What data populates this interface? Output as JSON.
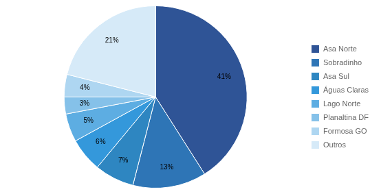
{
  "chart_data": {
    "type": "pie",
    "categories": [
      "Asa Norte",
      "Sobradinho",
      "Asa Sul",
      "Águas Claras",
      "Lago Norte",
      "Planaltina DF",
      "Formosa GO",
      "Outros"
    ],
    "values": [
      41,
      13,
      7,
      6,
      5,
      3,
      4,
      21
    ],
    "value_labels": [
      "41%",
      "13%",
      "7%",
      "6%",
      "5%",
      "3%",
      "4%",
      "21%"
    ],
    "colors": [
      "#2F5496",
      "#2E75B6",
      "#2E86C1",
      "#3498DB",
      "#5DADE2",
      "#85C1E9",
      "#AED6F1",
      "#D6EAF8"
    ],
    "data_labels": true,
    "legend": "right"
  }
}
